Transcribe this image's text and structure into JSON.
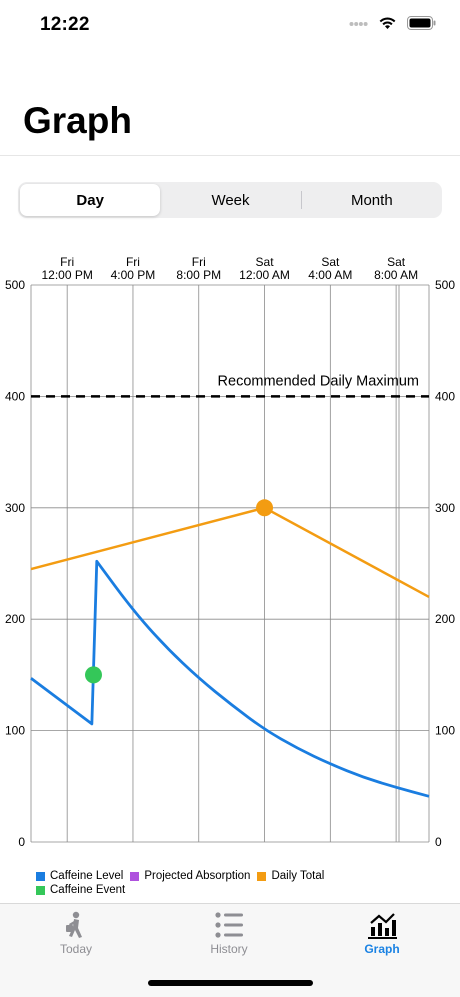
{
  "status_bar": {
    "time": "12:22"
  },
  "page": {
    "title": "Graph"
  },
  "segments": {
    "day": "Day",
    "week": "Week",
    "month": "Month",
    "selected": "Day"
  },
  "chart_data": {
    "type": "line",
    "x_tick_labels": [
      [
        "Fri",
        "12:00 PM"
      ],
      [
        "Fri",
        "4:00 PM"
      ],
      [
        "Fri",
        "8:00 PM"
      ],
      [
        "Sat",
        "12:00 AM"
      ],
      [
        "Sat",
        "4:00 AM"
      ],
      [
        "Sat",
        "8:00 AM"
      ]
    ],
    "x_range_hours": [
      -2.2,
      22
    ],
    "ylim": [
      0,
      500
    ],
    "y_ticks": [
      0,
      100,
      200,
      300,
      400,
      500
    ],
    "grid": true,
    "legend_position": "bottom-left",
    "annotation": "Recommended Daily Maximum",
    "reference_line": {
      "value": 400,
      "label": "Recommended Daily Maximum",
      "style": "dashed"
    },
    "series": [
      {
        "name": "Caffeine Level",
        "color": "#1a7de0",
        "x_hours": [
          -2.2,
          1.5,
          1.8,
          4,
          6,
          8,
          10,
          12,
          14,
          16,
          18,
          20,
          22
        ],
        "values": [
          147,
          106,
          252,
          208,
          175,
          147,
          123,
          101,
          84,
          70,
          58,
          49,
          41
        ]
      },
      {
        "name": "Projected Absorption",
        "color": "#af52de",
        "x_hours": [],
        "values": []
      },
      {
        "name": "Daily Total",
        "color": "#f39c12",
        "x_hours": [
          -2.2,
          12,
          22
        ],
        "values": [
          245,
          300,
          220
        ],
        "markers": [
          {
            "x_hours": 12,
            "value": 300
          }
        ]
      },
      {
        "name": "Caffeine Event",
        "color": "#34c759",
        "x_hours": [
          1.6
        ],
        "values": [
          150
        ]
      }
    ]
  },
  "tabs": [
    {
      "label": "Today",
      "icon": "walking-person-coffee-icon",
      "active": false
    },
    {
      "label": "History",
      "icon": "list-bullet-icon",
      "active": false
    },
    {
      "label": "Graph",
      "icon": "chart-icon",
      "active": true
    }
  ],
  "colors": {
    "accent": "#1a82e3"
  }
}
